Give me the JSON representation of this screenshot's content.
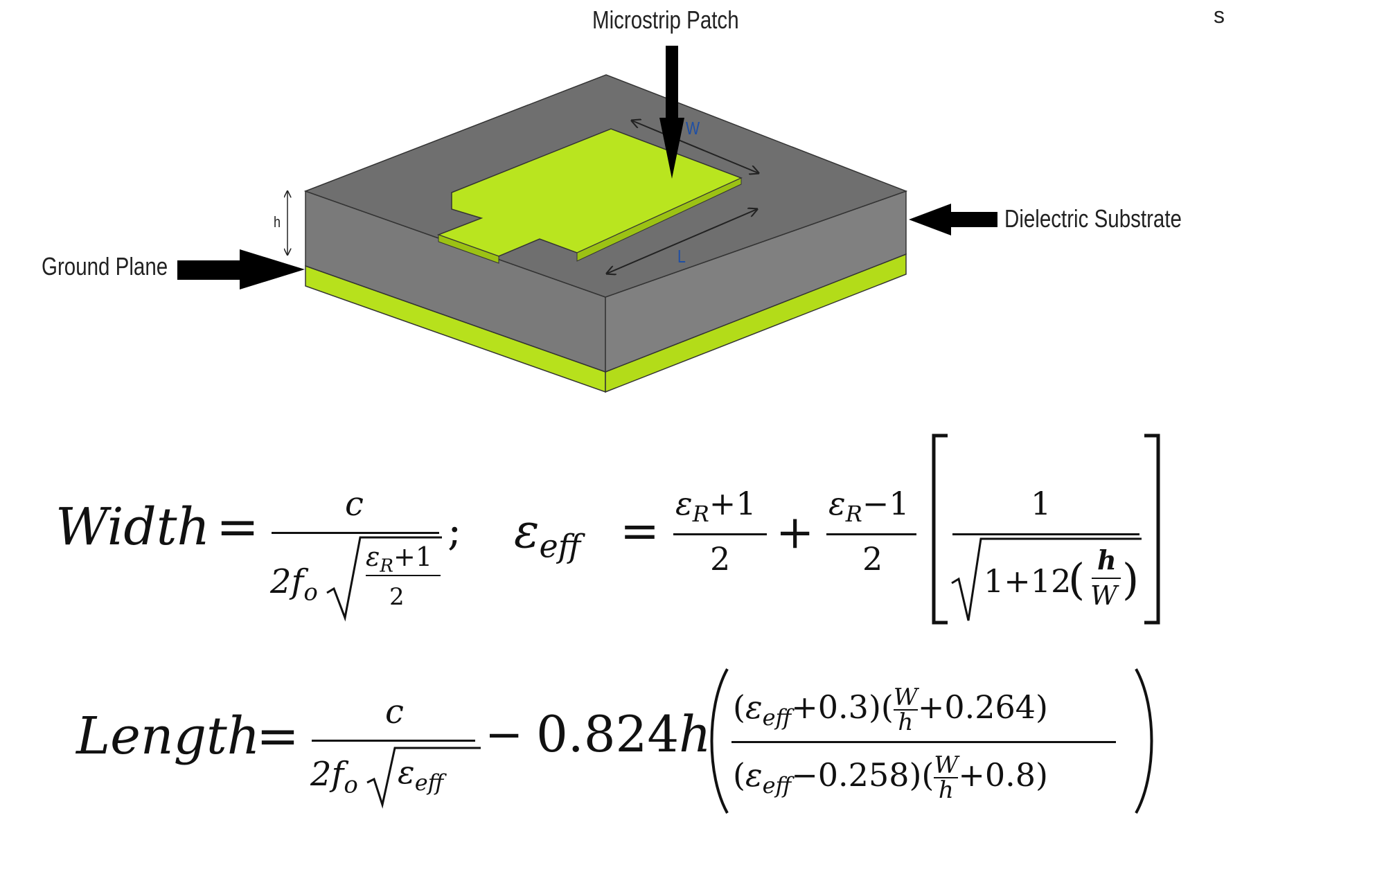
{
  "labels": {
    "microstrip_patch": "Microstrip Patch",
    "dielectric_substrate": "Dielectric Substrate",
    "ground_plane": "Ground Plane",
    "corner_mark": "s",
    "w": "W",
    "l": "L",
    "h": "h"
  },
  "colors": {
    "substrate_top": "#707070",
    "substrate_side": "#7c7c7c",
    "ground": "#b7e11c",
    "patch": "#b9e51f",
    "w_label": "#1e4fa5"
  },
  "equations": {
    "width": {
      "lhs": "Width",
      "eq": "=",
      "num": "c",
      "den_coef": "2f",
      "den_sub": "o",
      "root_num": "ε",
      "root_num_sub": "R",
      "root_num_tail": "+1",
      "root_den": "2",
      "sep": ";"
    },
    "eps_eff": {
      "lhs": "ε",
      "lhs_sub": "eff",
      "eq": "=",
      "t1_num": "ε",
      "t1_num_sub": "R",
      "t1_num_tail": "+1",
      "t1_den": "2",
      "plus": "+",
      "t2_num": "ε",
      "t2_num_sub": "R",
      "t2_num_tail": "−1",
      "t2_den": "2",
      "br_num": "1",
      "br_den_head": "1+12",
      "br_den_frac_num": "h",
      "br_den_frac_den": "W"
    },
    "length": {
      "lhs": "Length",
      "eq": "=",
      "num": "c",
      "den_coef": "2f",
      "den_sub": "o",
      "den_root": "ε",
      "den_root_sub": "eff",
      "minus": "−",
      "coef": "0.824",
      "coef_var": "h",
      "n_eps": "ε",
      "n_eps_sub": "eff",
      "n_eps_tail": "+0.3",
      "n_frac_num": "W",
      "n_frac_den": "h",
      "n_tail": "+0.264",
      "d_eps": "ε",
      "d_eps_sub": "eff",
      "d_eps_tail": "−0.258",
      "d_frac_num": "W",
      "d_frac_den": "h",
      "d_tail": "+0.8"
    }
  }
}
